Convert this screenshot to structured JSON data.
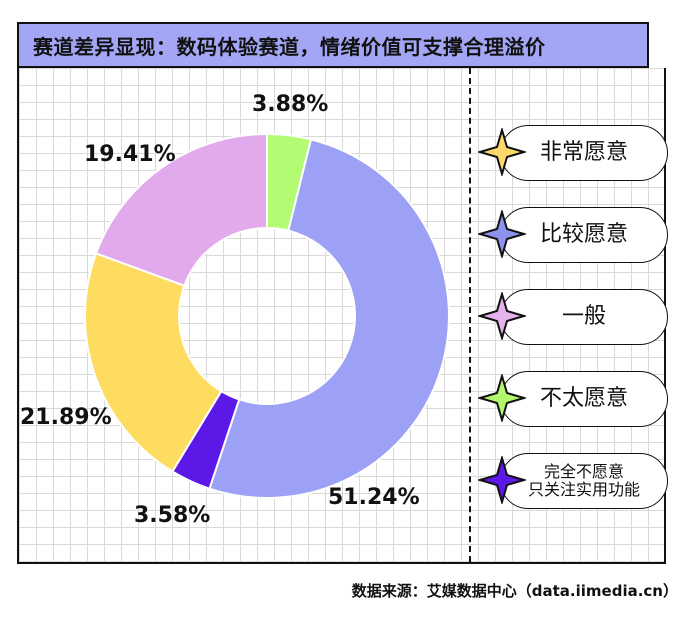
{
  "title": "赛道差异显现：数码体验赛道，情绪价值可支撑合理溢价",
  "source": "数据来源：艾媒数据中心（data.iimedia.cn）",
  "chart_data": {
    "type": "pie",
    "donut": true,
    "legend_position": "right",
    "slices": [
      {
        "label": "非常愿意",
        "value": 51.24,
        "display": "51.24%",
        "color": "#9ca1f5"
      },
      {
        "label": "比较愿意",
        "value": 3.58,
        "display": "3.58%",
        "color": "#5b18e6"
      },
      {
        "label": "一般",
        "value": 21.89,
        "display": "21.89%",
        "color": "#fedc60"
      },
      {
        "label": "不太愿意",
        "value": 19.41,
        "display": "19.41%",
        "color": "#e2a9ec"
      },
      {
        "label": "完全不愿意只关注实用功能",
        "value": 3.88,
        "display": "3.88%",
        "color": "#b4fb74"
      }
    ]
  },
  "legend": [
    {
      "label": "非常愿意",
      "color": "#fbd96a"
    },
    {
      "label": "比较愿意",
      "color": "#8d93ec"
    },
    {
      "label": "一般",
      "color": "#e6b2ec"
    },
    {
      "label": "不太愿意",
      "color": "#b2f76e"
    },
    {
      "label_line1": "完全不愿意",
      "label_line2": "只关注实用功能",
      "color": "#5b18e6"
    }
  ]
}
